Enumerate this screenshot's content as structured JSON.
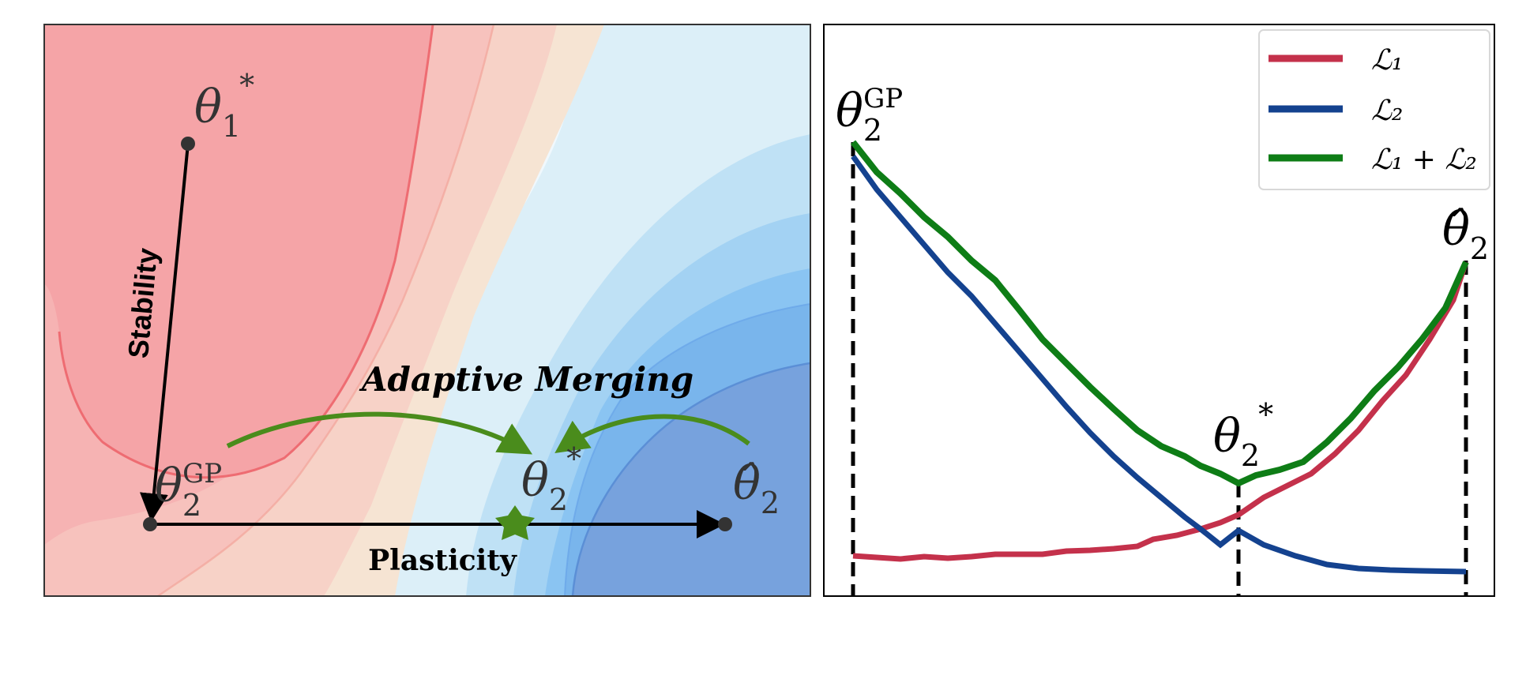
{
  "left_panel": {
    "points": {
      "theta1_star": {
        "base": "θ",
        "sub": "1",
        "sup": "*"
      },
      "theta2_gp": {
        "base": "θ",
        "sub": "2",
        "sup": "GP"
      },
      "theta2_star": {
        "base": "θ",
        "sub": "2",
        "sup": "*"
      },
      "theta2_hat": {
        "base": "θ̂",
        "sub": "2"
      }
    },
    "labels": {
      "stability": "Stability",
      "adaptive_merging": "Adaptive Merging",
      "plasticity": "Plasticity"
    },
    "colors": {
      "red_region": "#f4a3a6",
      "blue_region": "#7aa0d8",
      "arrow_green": "#4a8c1c",
      "star_green": "#4a8c1c",
      "axis_black": "#000000"
    }
  },
  "right_panel": {
    "legend": {
      "placement": "top-right",
      "entries": [
        {
          "label": "ℒ₁",
          "color": "#c4314b"
        },
        {
          "label": "ℒ₂",
          "color": "#14428f"
        },
        {
          "label": "ℒ₁ + ℒ₂",
          "color": "#0e7d16"
        }
      ]
    },
    "markers": {
      "theta2_gp": {
        "base": "θ",
        "sub": "2",
        "sup": "GP"
      },
      "theta2_star": {
        "base": "θ",
        "sub": "2",
        "sup": "*"
      },
      "theta2_hat": {
        "base": "θ̂",
        "sub": "2"
      }
    }
  }
}
